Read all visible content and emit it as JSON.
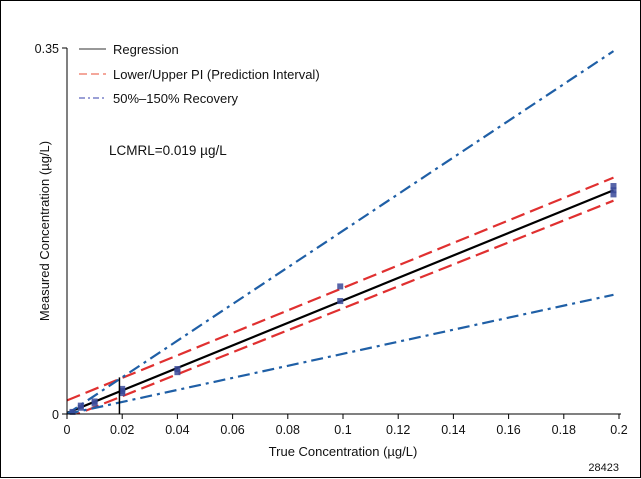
{
  "chart_data": {
    "type": "scatter",
    "xlabel": "True Concentration (µg/L)",
    "ylabel": "Measured Concentration (µg/L)",
    "xlim": [
      0,
      0.2
    ],
    "ylim": [
      0,
      0.35
    ],
    "x_ticks": [
      "0",
      "0.02",
      "0.04",
      "0.06",
      "0.08",
      "0.1",
      "0.12",
      "0.14",
      "0.16",
      "0.18",
      "0.2"
    ],
    "x_tick_values": [
      0,
      0.02,
      0.04,
      0.06,
      0.08,
      0.1,
      0.12,
      0.14,
      0.16,
      0.18,
      0.2
    ],
    "y_ticks": [
      "0",
      "0.35"
    ],
    "y_tick_values": [
      0,
      0.35
    ],
    "legend": [
      {
        "label": "Regression",
        "style": "solid",
        "color": "#000000"
      },
      {
        "label": "Lower/Upper PI (Prediction Interval)",
        "style": "dashed",
        "color": "#e03030"
      },
      {
        "label": "50%–150% Recovery",
        "style": "dashdot",
        "color": "#1f5fa6"
      }
    ],
    "annotation": "LCMRL=0.019 µg/L",
    "lcmrl_x": 0.019,
    "figure_id": "28423",
    "series": [
      {
        "kind": "regression",
        "x": [
          0,
          0.198
        ],
        "y": [
          0.001,
          0.214
        ],
        "color": "#000000"
      },
      {
        "kind": "upper_pi",
        "x": [
          0,
          0.198
        ],
        "y": [
          0.013,
          0.226
        ],
        "color": "#e03030"
      },
      {
        "kind": "lower_pi",
        "x": [
          0,
          0.198
        ],
        "y": [
          -0.004,
          0.204
        ],
        "color": "#e03030"
      },
      {
        "kind": "recovery_150",
        "x": [
          0,
          0.198
        ],
        "y": [
          0,
          0.347
        ],
        "color": "#1f5fa6"
      },
      {
        "kind": "recovery_50",
        "x": [
          0,
          0.198
        ],
        "y": [
          0,
          0.114
        ],
        "color": "#1f5fa6"
      }
    ],
    "points": {
      "color": "#3a4a9a",
      "x": [
        0.002,
        0.005,
        0.005,
        0.01,
        0.01,
        0.02,
        0.02,
        0.02,
        0.04,
        0.04,
        0.099,
        0.099,
        0.198,
        0.198,
        0.198
      ],
      "y": [
        0.002,
        0.006,
        0.008,
        0.01,
        0.012,
        0.02,
        0.022,
        0.024,
        0.04,
        0.043,
        0.108,
        0.122,
        0.21,
        0.214,
        0.218
      ]
    }
  }
}
